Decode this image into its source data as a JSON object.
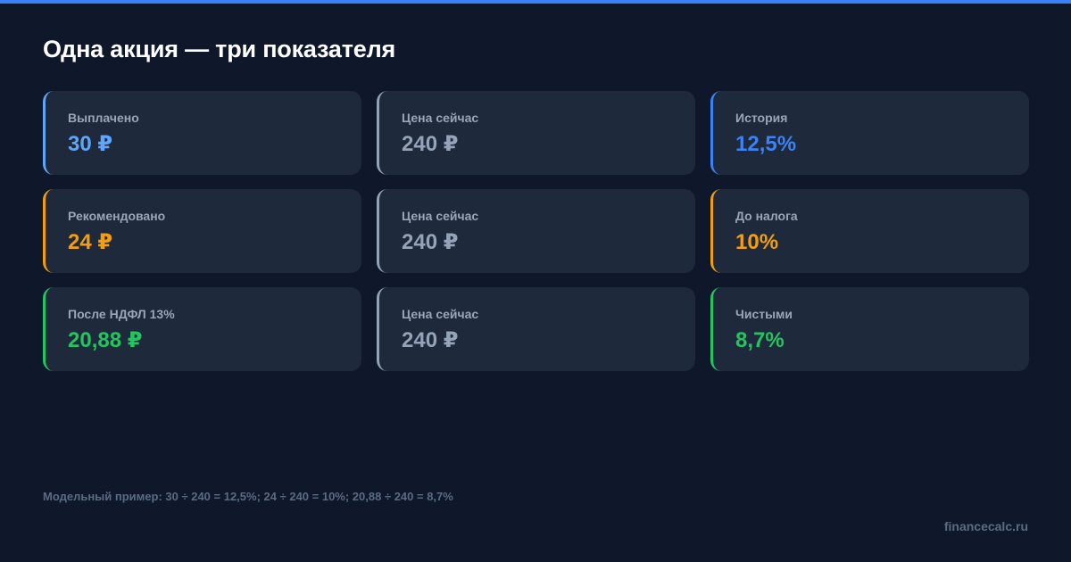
{
  "title": "Одна акция — три показателя",
  "accent_color": "#3b82f6",
  "rows": [
    {
      "cards": [
        {
          "label": "Выплачено",
          "value": "30 ₽",
          "color": "#60a5fa"
        },
        {
          "label": "Цена сейчас",
          "value": "240 ₽",
          "color": "#94a3b8"
        },
        {
          "label": "История",
          "value": "12,5%",
          "color": "#3b82f6"
        }
      ]
    },
    {
      "cards": [
        {
          "label": "Рекомендовано",
          "value": "24 ₽",
          "color": "#f59e0b"
        },
        {
          "label": "Цена сейчас",
          "value": "240 ₽",
          "color": "#94a3b8"
        },
        {
          "label": "До налога",
          "value": "10%",
          "color": "#f59e0b"
        }
      ]
    },
    {
      "cards": [
        {
          "label": "После НДФЛ 13%",
          "value": "20,88 ₽",
          "color": "#22c55e"
        },
        {
          "label": "Цена сейчас",
          "value": "240 ₽",
          "color": "#94a3b8"
        },
        {
          "label": "Чистыми",
          "value": "8,7%",
          "color": "#22c55e"
        }
      ]
    }
  ],
  "footnote": "Модельный пример: 30 ÷ 240 = 12,5%; 24 ÷ 240 = 10%; 20,88 ÷ 240 = 8,7%",
  "brand": "financecalc.ru"
}
